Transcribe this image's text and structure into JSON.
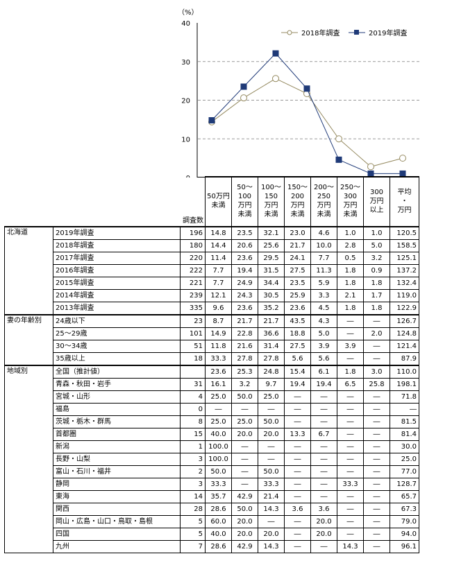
{
  "chart_data": {
    "type": "line",
    "ylabel": "（%）",
    "ylim": [
      0,
      40
    ],
    "yticks": [
      0,
      10,
      20,
      30,
      40
    ],
    "categories": [
      "50万円未満",
      "50～100万円未満",
      "100～150万円未満",
      "150～200万円未満",
      "200～250万円未満",
      "250～300万円未満",
      "300万円以上"
    ],
    "grid": true,
    "legend_position": "top-right",
    "series": [
      {
        "name": "2018年調査",
        "marker": "open-circle",
        "color": "#958a60",
        "values": [
          14.4,
          20.6,
          25.6,
          21.7,
          10.0,
          2.8,
          5.0
        ]
      },
      {
        "name": "2019年調査",
        "marker": "filled-square",
        "color": "#1f3a78",
        "values": [
          14.8,
          23.5,
          32.1,
          23.0,
          4.6,
          1.0,
          1.0
        ]
      }
    ]
  },
  "table": {
    "sample_header": "調査数",
    "headers": [
      [
        "50万円",
        "未満"
      ],
      [
        "50～",
        "100",
        "万円",
        "未満"
      ],
      [
        "100～",
        "150",
        "万円",
        "未満"
      ],
      [
        "150～",
        "200",
        "万円",
        "未満"
      ],
      [
        "200～",
        "250",
        "万円",
        "未満"
      ],
      [
        "250～",
        "300",
        "万円",
        "未満"
      ],
      [
        "300",
        "万円",
        "以上"
      ],
      [
        "平均",
        "・",
        "万円"
      ]
    ],
    "groups": [
      {
        "name": "北海道",
        "rows": [
          {
            "label": "2019年調査",
            "n": "196",
            "vals": [
              "14.8",
              "23.5",
              "32.1",
              "23.0",
              "4.6",
              "1.0",
              "1.0",
              "120.5"
            ]
          },
          {
            "label": "2018年調査",
            "n": "180",
            "vals": [
              "14.4",
              "20.6",
              "25.6",
              "21.7",
              "10.0",
              "2.8",
              "5.0",
              "158.5"
            ]
          },
          {
            "label": "2017年調査",
            "n": "220",
            "vals": [
              "11.4",
              "23.6",
              "29.5",
              "24.1",
              "7.7",
              "0.5",
              "3.2",
              "125.1"
            ]
          },
          {
            "label": "2016年調査",
            "n": "222",
            "vals": [
              "7.7",
              "19.4",
              "31.5",
              "27.5",
              "11.3",
              "1.8",
              "0.9",
              "137.2"
            ]
          },
          {
            "label": "2015年調査",
            "n": "221",
            "vals": [
              "7.7",
              "24.9",
              "34.4",
              "23.5",
              "5.9",
              "1.8",
              "1.8",
              "132.4"
            ]
          },
          {
            "label": "2014年調査",
            "n": "239",
            "vals": [
              "12.1",
              "24.3",
              "30.5",
              "25.9",
              "3.3",
              "2.1",
              "1.7",
              "119.0"
            ]
          },
          {
            "label": "2013年調査",
            "n": "335",
            "vals": [
              "9.6",
              "23.6",
              "35.2",
              "23.6",
              "4.5",
              "1.8",
              "1.8",
              "122.9"
            ]
          }
        ]
      },
      {
        "name": "妻の年齢別",
        "rows": [
          {
            "label": "24歳以下",
            "n": "23",
            "vals": [
              "8.7",
              "21.7",
              "21.7",
              "43.5",
              "4.3",
              "―",
              "―",
              "126.7"
            ]
          },
          {
            "label": "25～29歳",
            "n": "101",
            "vals": [
              "14.9",
              "22.8",
              "36.6",
              "18.8",
              "5.0",
              "―",
              "2.0",
              "124.8"
            ]
          },
          {
            "label": "30～34歳",
            "n": "51",
            "vals": [
              "11.8",
              "21.6",
              "31.4",
              "27.5",
              "3.9",
              "3.9",
              "―",
              "121.4"
            ]
          },
          {
            "label": "35歳以上",
            "n": "18",
            "vals": [
              "33.3",
              "27.8",
              "27.8",
              "5.6",
              "5.6",
              "―",
              "―",
              "87.9"
            ]
          }
        ]
      },
      {
        "name": "地域別",
        "rows": [
          {
            "label": "全国（推計値）",
            "n": "",
            "vals": [
              "23.6",
              "25.3",
              "24.8",
              "15.4",
              "6.1",
              "1.8",
              "3.0",
              "110.0"
            ]
          },
          {
            "label": "青森・秋田・岩手",
            "n": "31",
            "vals": [
              "16.1",
              "3.2",
              "9.7",
              "19.4",
              "19.4",
              "6.5",
              "25.8",
              "198.1"
            ]
          },
          {
            "label": "宮城・山形",
            "n": "4",
            "vals": [
              "25.0",
              "50.0",
              "25.0",
              "―",
              "―",
              "―",
              "―",
              "71.8"
            ]
          },
          {
            "label": "福島",
            "n": "0",
            "vals": [
              "―",
              "―",
              "―",
              "―",
              "―",
              "―",
              "―",
              "―"
            ]
          },
          {
            "label": "茨城・栃木・群馬",
            "n": "8",
            "vals": [
              "25.0",
              "25.0",
              "50.0",
              "―",
              "―",
              "―",
              "―",
              "81.5"
            ]
          },
          {
            "label": "首都圏",
            "n": "15",
            "vals": [
              "40.0",
              "20.0",
              "20.0",
              "13.3",
              "6.7",
              "―",
              "―",
              "81.4"
            ]
          },
          {
            "label": "新潟",
            "n": "1",
            "vals": [
              "100.0",
              "―",
              "―",
              "―",
              "―",
              "―",
              "―",
              "30.0"
            ]
          },
          {
            "label": "長野・山梨",
            "n": "3",
            "vals": [
              "100.0",
              "―",
              "―",
              "―",
              "―",
              "―",
              "―",
              "25.0"
            ]
          },
          {
            "label": "富山・石川・福井",
            "n": "2",
            "vals": [
              "50.0",
              "―",
              "50.0",
              "―",
              "―",
              "―",
              "―",
              "77.0"
            ]
          },
          {
            "label": "静岡",
            "n": "3",
            "vals": [
              "33.3",
              "―",
              "33.3",
              "―",
              "―",
              "33.3",
              "―",
              "128.7"
            ]
          },
          {
            "label": "東海",
            "n": "14",
            "vals": [
              "35.7",
              "42.9",
              "21.4",
              "―",
              "―",
              "―",
              "―",
              "65.7"
            ]
          },
          {
            "label": "関西",
            "n": "28",
            "vals": [
              "28.6",
              "50.0",
              "14.3",
              "3.6",
              "3.6",
              "―",
              "―",
              "67.3"
            ]
          },
          {
            "label": "岡山・広島・山口・鳥取・島根",
            "n": "5",
            "vals": [
              "60.0",
              "20.0",
              "―",
              "―",
              "20.0",
              "―",
              "―",
              "79.0"
            ]
          },
          {
            "label": "四国",
            "n": "5",
            "vals": [
              "40.0",
              "20.0",
              "20.0",
              "―",
              "20.0",
              "―",
              "―",
              "94.0"
            ]
          },
          {
            "label": "九州",
            "n": "7",
            "vals": [
              "28.6",
              "42.9",
              "14.3",
              "―",
              "―",
              "14.3",
              "―",
              "96.1"
            ]
          }
        ]
      }
    ]
  }
}
